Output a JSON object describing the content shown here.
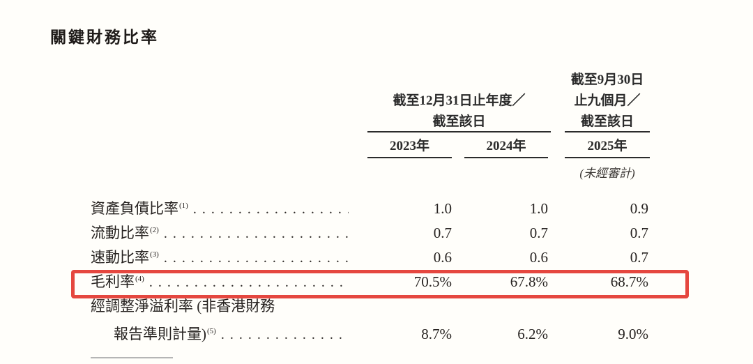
{
  "page": {
    "title": "關鍵財務比率"
  },
  "table": {
    "column_groups": [
      {
        "line1": "截至12月31日止年度／",
        "line2": "截至該日"
      },
      {
        "line1": "截至9月30日",
        "line2": "止九個月／",
        "line3": "截至該日"
      }
    ],
    "year_headers": [
      "2023年",
      "2024年",
      "2025年"
    ],
    "unaudited_note": "(未經審計)",
    "rows": [
      {
        "label": "資產負債比率",
        "footnote": "(1)",
        "values": [
          "1.0",
          "1.0",
          "0.9"
        ]
      },
      {
        "label": "流動比率",
        "footnote": "(2)",
        "values": [
          "0.7",
          "0.7",
          "0.7"
        ]
      },
      {
        "label": "速動比率",
        "footnote": "(3)",
        "values": [
          "0.6",
          "0.6",
          "0.7"
        ]
      },
      {
        "label": "毛利率",
        "footnote": "(4)",
        "values": [
          "70.5%",
          "67.8%",
          "68.7%"
        ],
        "highlighted": true
      },
      {
        "label_line1": "經調整淨溢利率 (非香港財務",
        "label_line2": "報告準則計量)",
        "footnote": "(5)",
        "values": [
          "8.7%",
          "6.2%",
          "9.0%"
        ]
      }
    ],
    "highlight_color": "#e5473f"
  }
}
